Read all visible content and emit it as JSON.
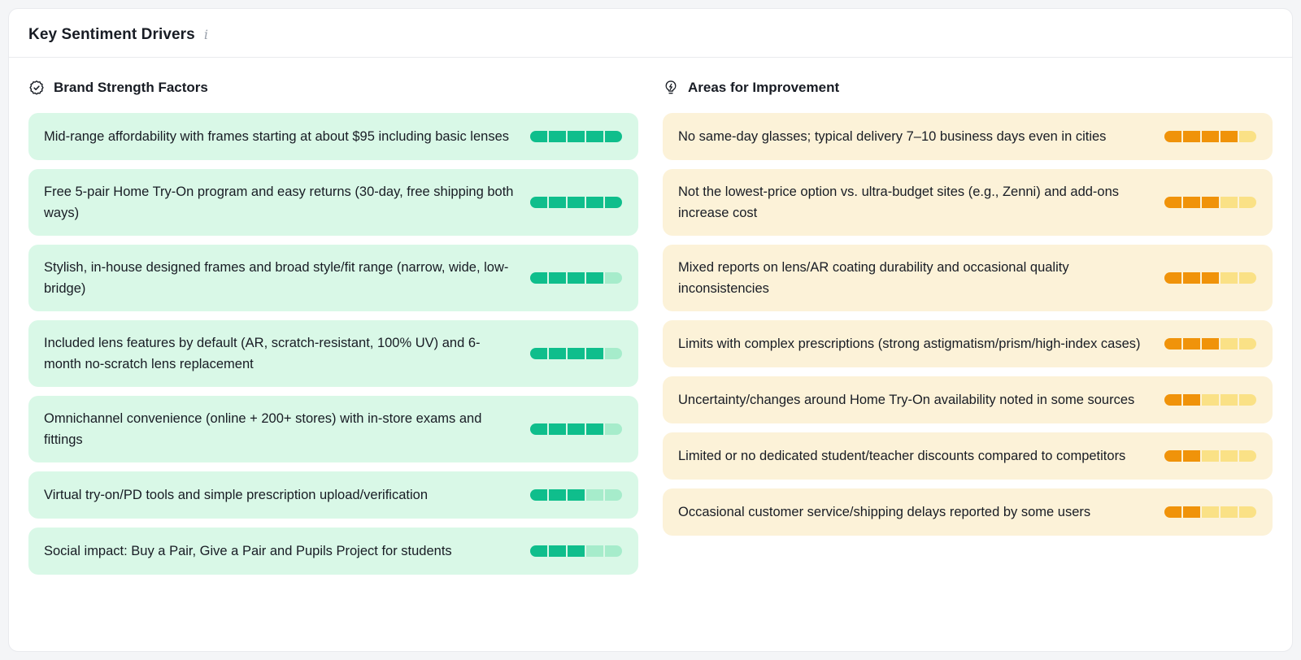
{
  "panel": {
    "title": "Key Sentiment Drivers"
  },
  "colors": {
    "page_bg": "#f4f5f7",
    "panel_bg": "#ffffff",
    "panel_border": "#e9eaee",
    "divider": "#e9ebee",
    "text": "#181c24",
    "positive_card_bg": "#d9f8e7",
    "positive_fill": "#0fbe8c",
    "positive_empty": "#a6eccb",
    "negative_card_bg": "#fcf2d8",
    "negative_fill": "#f0930a",
    "negative_empty": "#fae186"
  },
  "icons": {
    "title_info": "info-icon",
    "strengths": "verified-badge-icon",
    "improvements": "lightbulb-bolt-icon"
  },
  "columns": {
    "strengths": {
      "heading": "Brand Strength Factors",
      "max": 5,
      "items": [
        {
          "text": "Mid-range affordability with frames starting at about $95 including basic lenses",
          "score": 5
        },
        {
          "text": "Free 5-pair Home Try-On program and easy returns (30-day, free shipping both ways)",
          "score": 5
        },
        {
          "text": "Stylish, in-house designed frames and broad style/fit range (narrow, wide, low-bridge)",
          "score": 4
        },
        {
          "text": "Included lens features by default (AR, scratch-resistant, 100% UV) and 6-month no-scratch lens replacement",
          "score": 4
        },
        {
          "text": "Omnichannel convenience (online + 200+ stores) with in-store exams and fittings",
          "score": 4
        },
        {
          "text": "Virtual try-on/PD tools and simple prescription upload/verification",
          "score": 3
        },
        {
          "text": "Social impact: Buy a Pair, Give a Pair and Pupils Project for students",
          "score": 3
        }
      ]
    },
    "improvements": {
      "heading": "Areas for Improvement",
      "max": 5,
      "items": [
        {
          "text": "No same-day glasses; typical delivery 7–10 business days even in cities",
          "score": 4
        },
        {
          "text": "Not the lowest-price option vs. ultra-budget sites (e.g., Zenni) and add-ons increase cost",
          "score": 3
        },
        {
          "text": "Mixed reports on lens/AR coating durability and occasional quality inconsistencies",
          "score": 3
        },
        {
          "text": "Limits with complex prescriptions (strong astigmatism/prism/high-index cases)",
          "score": 3
        },
        {
          "text": "Uncertainty/changes around Home Try-On availability noted in some sources",
          "score": 2
        },
        {
          "text": "Limited or no dedicated student/teacher discounts compared to competitors",
          "score": 2
        },
        {
          "text": "Occasional customer service/shipping delays reported by some users",
          "score": 2
        }
      ]
    }
  }
}
